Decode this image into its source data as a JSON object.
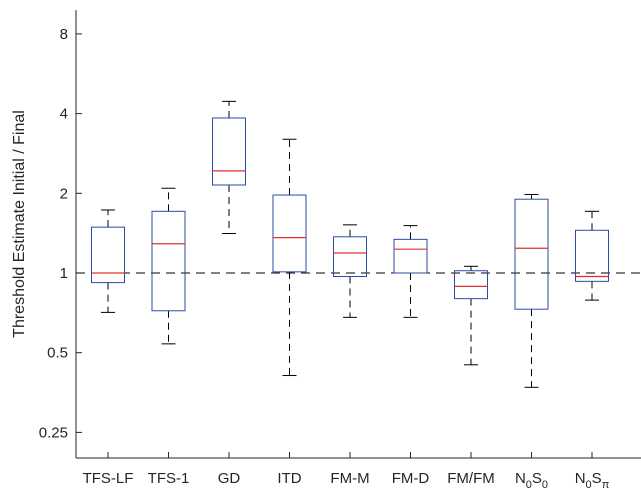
{
  "chart_data": {
    "type": "box",
    "title": "",
    "xlabel": "",
    "ylabel": "Threshold Estimate Initial / Final",
    "y_scale": "log2",
    "ylim": [
      0.2,
      10
    ],
    "y_ticks": [
      {
        "value": 0.25,
        "label": "0.25"
      },
      {
        "value": 0.5,
        "label": "0.5"
      },
      {
        "value": 1,
        "label": "1"
      },
      {
        "value": 2,
        "label": "2"
      },
      {
        "value": 4,
        "label": "4"
      },
      {
        "value": 8,
        "label": "8"
      }
    ],
    "reference_line": {
      "y": 1,
      "style": "dashed"
    },
    "categories": [
      {
        "label": "TFS-LF"
      },
      {
        "label": "TFS-1"
      },
      {
        "label": "GD"
      },
      {
        "label": "ITD"
      },
      {
        "label": "FM-M"
      },
      {
        "label": "FM-D"
      },
      {
        "label": "FM/FM"
      },
      {
        "label": "N",
        "sub1": "0",
        "mid": "S",
        "sub2": "0"
      },
      {
        "label": "N",
        "sub1": "0",
        "mid": "S",
        "sub2": "π"
      }
    ],
    "boxes": [
      {
        "whisker_low": 0.71,
        "q1": 0.92,
        "median": 1.0,
        "q3": 1.49,
        "whisker_high": 1.73
      },
      {
        "whisker_low": 0.54,
        "q1": 0.72,
        "median": 1.29,
        "q3": 1.71,
        "whisker_high": 2.09
      },
      {
        "whisker_low": 1.41,
        "q1": 2.15,
        "median": 2.43,
        "q3": 3.85,
        "whisker_high": 4.45
      },
      {
        "whisker_low": 0.41,
        "q1": 1.01,
        "median": 1.36,
        "q3": 1.97,
        "whisker_high": 3.2
      },
      {
        "whisker_low": 0.68,
        "q1": 0.97,
        "median": 1.19,
        "q3": 1.37,
        "whisker_high": 1.52
      },
      {
        "whisker_low": 0.68,
        "q1": 1.0,
        "median": 1.23,
        "q3": 1.34,
        "whisker_high": 1.51
      },
      {
        "whisker_low": 0.45,
        "q1": 0.8,
        "median": 0.89,
        "q3": 1.02,
        "whisker_high": 1.06
      },
      {
        "whisker_low": 0.37,
        "q1": 0.73,
        "median": 1.24,
        "q3": 1.9,
        "whisker_high": 1.98
      },
      {
        "whisker_low": 0.79,
        "q1": 0.93,
        "median": 0.97,
        "q3": 1.45,
        "whisker_high": 1.71
      }
    ],
    "colors": {
      "box": "#2f49a6",
      "median": "#e0312e",
      "whisker": "#000000",
      "axis": "#262626",
      "reference": "#000000"
    },
    "grid": false,
    "legend": "none"
  }
}
